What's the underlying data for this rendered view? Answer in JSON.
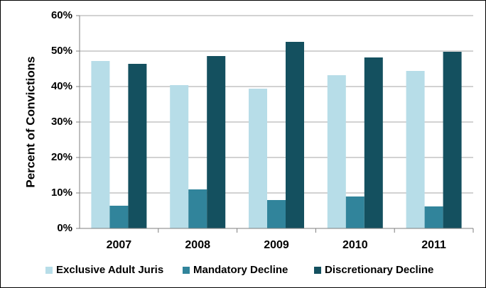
{
  "chart_data": {
    "type": "bar",
    "y_label": "Percent of Convictions",
    "categories": [
      "2007",
      "2008",
      "2009",
      "2010",
      "2011"
    ],
    "series": [
      {
        "name": "Exclusive Adult Juris",
        "color": "#b7dde8",
        "values": [
          47.2,
          40.4,
          39.4,
          43.2,
          44.4
        ]
      },
      {
        "name": "Mandatory Decline",
        "color": "#31849b",
        "values": [
          6.4,
          11,
          8,
          9,
          6.2
        ]
      },
      {
        "name": "Discretionary Decline",
        "color": "#14505f",
        "values": [
          46.4,
          48.6,
          52.6,
          48.2,
          49.8
        ]
      }
    ],
    "ylim": [
      0,
      60
    ],
    "yticks": [
      {
        "value": 0,
        "label": "0%"
      },
      {
        "value": 10,
        "label": "10%"
      },
      {
        "value": 20,
        "label": "20%"
      },
      {
        "value": 30,
        "label": "30%"
      },
      {
        "value": 40,
        "label": "40%"
      },
      {
        "value": 50,
        "label": "50%"
      },
      {
        "value": 60,
        "label": "60%"
      }
    ],
    "grid": true,
    "legend": "bottom"
  }
}
